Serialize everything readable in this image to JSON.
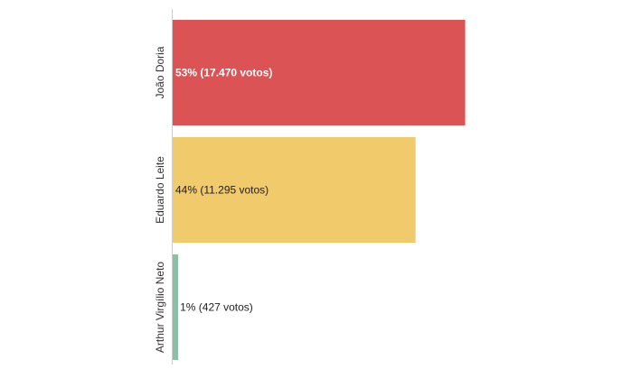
{
  "chart_data": {
    "type": "bar",
    "orientation": "horizontal",
    "categories": [
      "João Doria",
      "Eduardo Leite",
      "Arthur Virgílio Neto"
    ],
    "values": [
      53,
      44,
      1
    ],
    "votes": [
      17470,
      11295,
      427
    ],
    "data_labels": [
      "53% (17.470 votos)",
      "44% (11.295 votos)",
      "1% (427 votos)"
    ],
    "colors": [
      "#dc5356",
      "#f0ca6b",
      "#8cc0a6"
    ],
    "label_colors": [
      "#ffffff",
      "#222222",
      "#222222"
    ],
    "axis_color": "#cccccc",
    "xlim": [
      0,
      57
    ],
    "grid": false,
    "legend": "none",
    "title": "",
    "xlabel": "",
    "ylabel": ""
  }
}
